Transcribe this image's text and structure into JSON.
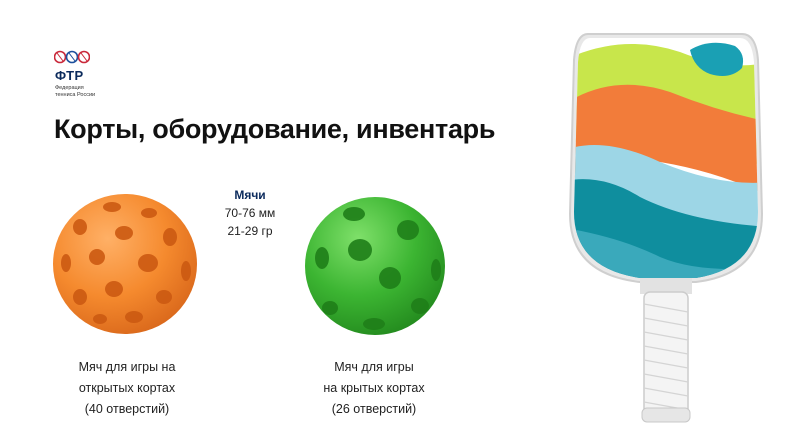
{
  "logo": {
    "abbr": "ФТР",
    "subtitle_line1": "Федерация",
    "subtitle_line2": "тенниса России"
  },
  "title": "Корты, оборудование, инвентарь",
  "specs": {
    "heading": "Мячи",
    "diameter": "70-76 мм",
    "weight": "21-29 гр"
  },
  "balls": [
    {
      "line1": "Мяч для игры на",
      "line2": "открытых кортах",
      "line3": "(40 отверстий)",
      "color": "#f58a2e"
    },
    {
      "line1": "Мяч для игры",
      "line2": "на крытых кортах",
      "line3": "(26 отверстий)",
      "color": "#3cb532"
    }
  ],
  "paddle": {
    "colors": [
      "#ffffff",
      "#c8e64b",
      "#f27c3a",
      "#3aa9bb",
      "#9dd6e6",
      "#0f8e9e",
      "#dcdcdc"
    ]
  }
}
